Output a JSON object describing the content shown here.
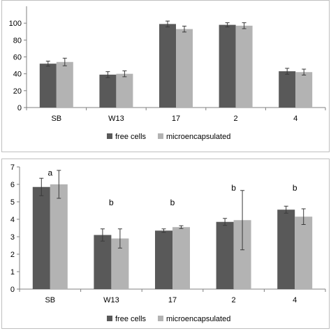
{
  "chart_data": [
    {
      "type": "bar",
      "categories": [
        "SB",
        "W13",
        "17",
        "2",
        "4"
      ],
      "series": [
        {
          "name": "free cells",
          "values": [
            52,
            39,
            99,
            98,
            43
          ],
          "errors": [
            3,
            3.5,
            3.5,
            2.5,
            3.5
          ],
          "color": "#595959"
        },
        {
          "name": "microencapsulated",
          "values": [
            54,
            40,
            93,
            97,
            42
          ],
          "errors": [
            4.5,
            3.5,
            3.5,
            3.5,
            3.5
          ],
          "color": "#b3b3b3"
        }
      ],
      "ylim": [
        0,
        120
      ],
      "yticks": [
        0,
        20,
        40,
        60,
        80,
        100
      ],
      "ytick_labels": [
        "0",
        "20",
        "40",
        "60",
        "80",
        "100"
      ],
      "annotations": [],
      "grid": false,
      "legend_position": "bottom"
    },
    {
      "type": "bar",
      "categories": [
        "SB",
        "W13",
        "17",
        "2",
        "4"
      ],
      "series": [
        {
          "name": "free cells",
          "values": [
            5.85,
            3.1,
            3.35,
            3.85,
            4.55
          ],
          "errors": [
            0.5,
            0.35,
            0.1,
            0.2,
            0.2
          ],
          "color": "#595959"
        },
        {
          "name": "microencapsulated",
          "values": [
            6.0,
            2.9,
            3.55,
            3.95,
            4.15
          ],
          "errors": [
            0.8,
            0.55,
            0.08,
            1.7,
            0.45
          ],
          "color": "#b3b3b3"
        }
      ],
      "ylim": [
        0,
        7
      ],
      "yticks": [
        0,
        1,
        2,
        3,
        4,
        5,
        6,
        7
      ],
      "ytick_labels": [
        "0",
        "1",
        "2",
        "3",
        "4",
        "5",
        "6",
        "7"
      ],
      "annotations": [
        {
          "category": "SB",
          "y": 6.5,
          "text": "a"
        },
        {
          "category": "W13",
          "y": 4.8,
          "text": "b"
        },
        {
          "category": "17",
          "y": 4.8,
          "text": "b"
        },
        {
          "category": "2",
          "y": 5.65,
          "text": "b"
        },
        {
          "category": "4",
          "y": 5.65,
          "text": "b"
        }
      ],
      "grid": false,
      "legend_position": "bottom"
    }
  ]
}
